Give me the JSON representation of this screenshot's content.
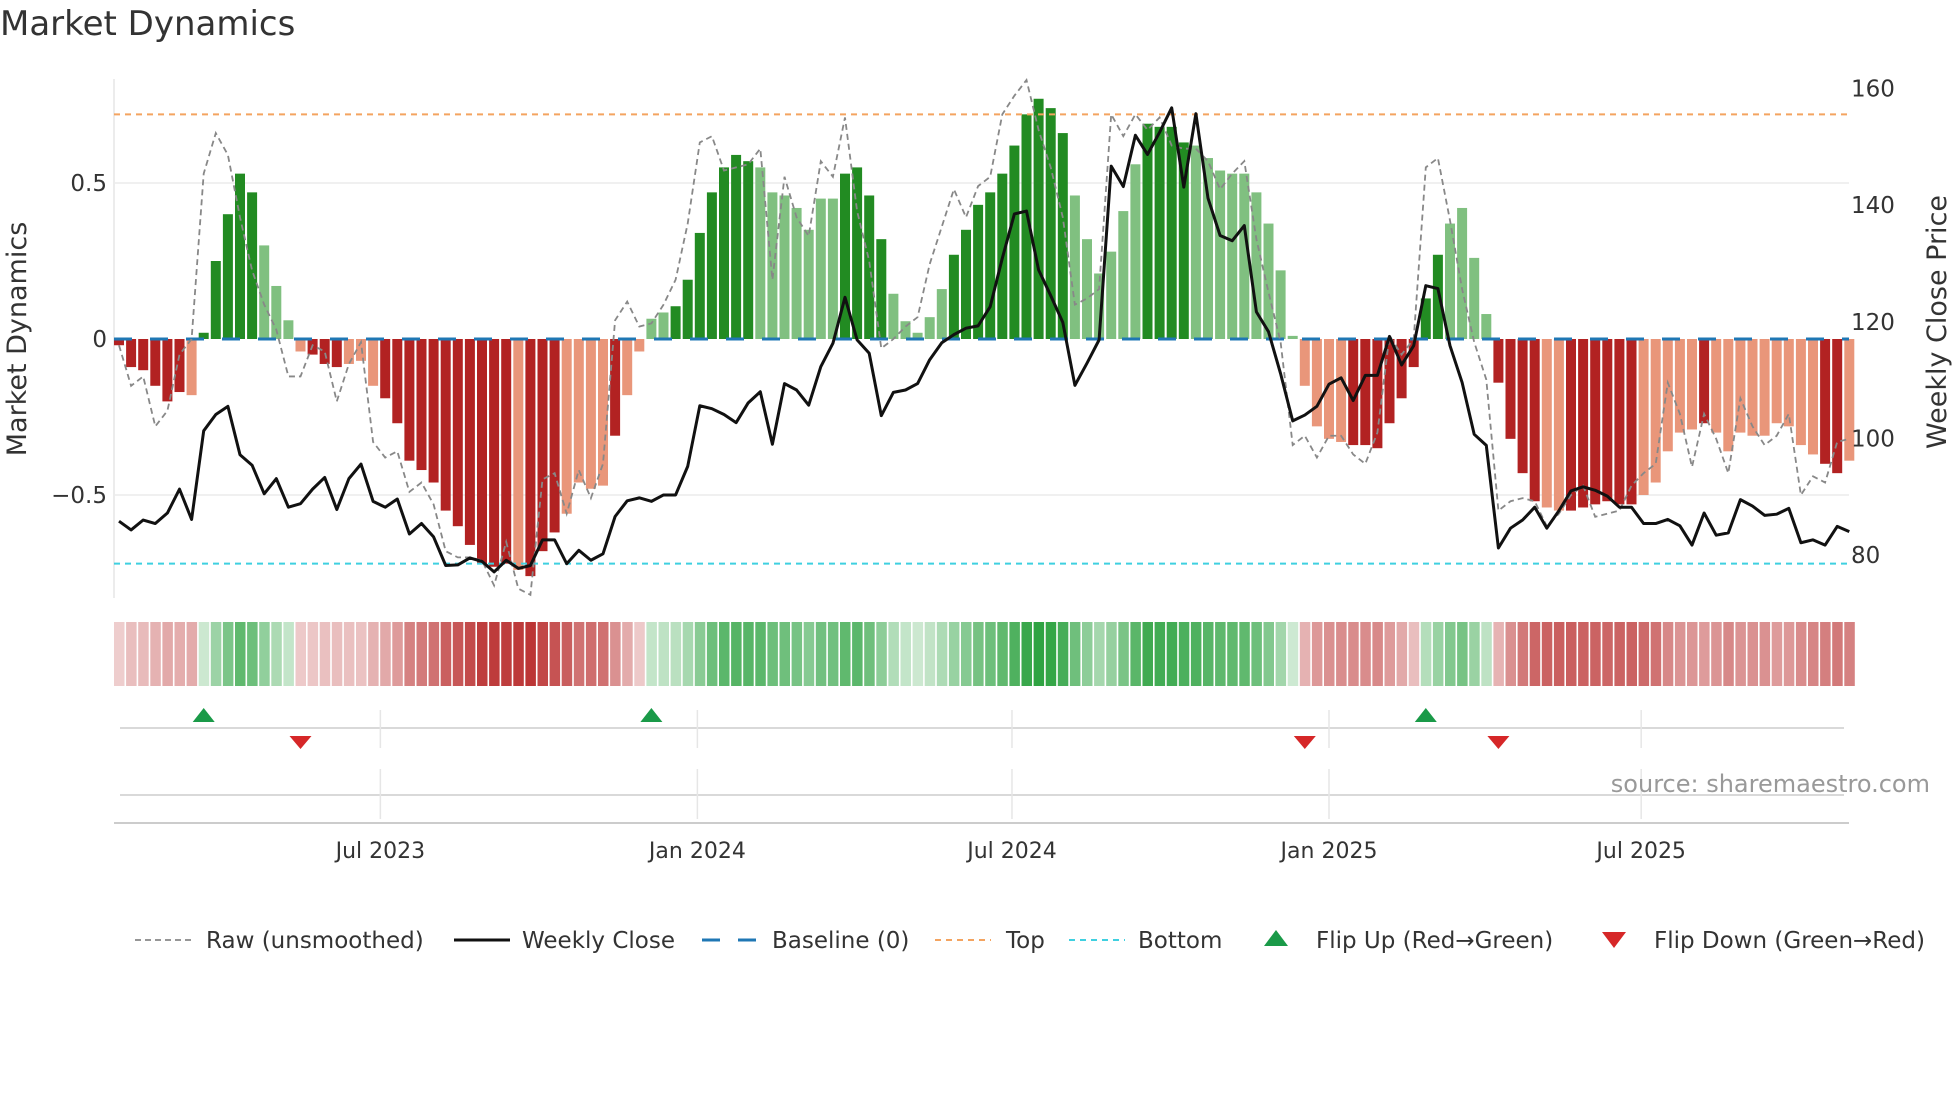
{
  "chart_data": {
    "type": "bar",
    "title": "Market Dynamics",
    "ylabel_left": "Market Dynamics",
    "ylabel_right": "Weekly Close Price",
    "left_ticks": [
      {
        "value": 0.5,
        "label": "0.5"
      },
      {
        "value": 0,
        "label": "0"
      },
      {
        "value": -0.5,
        "label": "−0.5"
      }
    ],
    "right_ticks": [
      {
        "value": 160,
        "label": "160"
      },
      {
        "value": 140,
        "label": "140"
      },
      {
        "value": 120,
        "label": "120"
      },
      {
        "value": 100,
        "label": "100"
      },
      {
        "value": 80,
        "label": "80"
      }
    ],
    "ylim_left": [
      -0.83,
      0.83
    ],
    "ylim_right": [
      80,
      160
    ],
    "top_level": 0.72,
    "bottom_level": -0.72,
    "baseline": 0,
    "x_ticks": [
      {
        "week": 22.6,
        "label": "Jul 2023"
      },
      {
        "week": 48.8,
        "label": "Jan 2024"
      },
      {
        "week": 74.8,
        "label": "Jul 2024"
      },
      {
        "week": 101,
        "label": "Jan 2025"
      },
      {
        "week": 126.8,
        "label": "Jul 2025"
      }
    ],
    "dynamics": [
      -0.02,
      -0.09,
      -0.1,
      -0.15,
      -0.2,
      -0.17,
      -0.18,
      0.02,
      0.25,
      0.4,
      0.53,
      0.47,
      0.3,
      0.17,
      0.06,
      -0.04,
      -0.05,
      -0.08,
      -0.09,
      -0.08,
      -0.07,
      -0.15,
      -0.19,
      -0.27,
      -0.39,
      -0.42,
      -0.46,
      -0.55,
      -0.6,
      -0.66,
      -0.72,
      -0.73,
      -0.72,
      -0.74,
      -0.76,
      -0.68,
      -0.62,
      -0.56,
      -0.46,
      -0.48,
      -0.47,
      -0.31,
      -0.18,
      -0.04,
      0.065,
      0.085,
      0.105,
      0.19,
      0.34,
      0.47,
      0.55,
      0.59,
      0.57,
      0.55,
      0.47,
      0.46,
      0.42,
      0.35,
      0.45,
      0.45,
      0.53,
      0.55,
      0.46,
      0.32,
      0.145,
      0.057,
      0.02,
      0.07,
      0.16,
      0.27,
      0.35,
      0.43,
      0.47,
      0.53,
      0.62,
      0.72,
      0.77,
      0.74,
      0.66,
      0.46,
      0.32,
      0.21,
      0.28,
      0.41,
      0.56,
      0.69,
      0.68,
      0.68,
      0.63,
      0.62,
      0.58,
      0.54,
      0.53,
      0.53,
      0.47,
      0.37,
      0.22,
      0.01,
      -0.15,
      -0.28,
      -0.32,
      -0.33,
      -0.34,
      -0.34,
      -0.35,
      -0.27,
      -0.19,
      -0.09,
      0.13,
      0.27,
      0.37,
      0.42,
      0.26,
      0.08,
      -0.14,
      -0.32,
      -0.43,
      -0.52,
      -0.54,
      -0.55,
      -0.55,
      -0.54,
      -0.53,
      -0.52,
      -0.53,
      -0.53,
      -0.5,
      -0.46,
      -0.36,
      -0.3,
      -0.29,
      -0.27,
      -0.3,
      -0.36,
      -0.3,
      -0.31,
      -0.31,
      -0.27,
      -0.28,
      -0.34,
      -0.37,
      -0.4,
      -0.43,
      -0.39
    ],
    "momentum_shade": "ddddddldddddlllldddllldddddddddddldddlllldlllldddddddlllllllddddlllllddddddddddllllllddddlllllllllllllddddddddllllddddllddddddllllldlllllllllddldldllddddddl",
    "raw": [
      -0.02,
      -0.15,
      -0.12,
      -0.28,
      -0.23,
      -0.05,
      0.0,
      0.53,
      0.66,
      0.59,
      0.39,
      0.22,
      0.11,
      0.03,
      -0.12,
      -0.12,
      -0.02,
      -0.04,
      -0.2,
      -0.08,
      -0.01,
      -0.33,
      -0.38,
      -0.36,
      -0.49,
      -0.46,
      -0.53,
      -0.68,
      -0.7,
      -0.7,
      -0.71,
      -0.79,
      -0.65,
      -0.8,
      -0.82,
      -0.45,
      -0.43,
      -0.56,
      -0.42,
      -0.51,
      -0.4,
      0.06,
      0.12,
      0.04,
      0.05,
      0.11,
      0.19,
      0.37,
      0.63,
      0.65,
      0.54,
      0.55,
      0.56,
      0.61,
      0.19,
      0.52,
      0.39,
      0.33,
      0.57,
      0.52,
      0.71,
      0.41,
      0.25,
      -0.03,
      0.0,
      0.04,
      0.07,
      0.24,
      0.36,
      0.48,
      0.39,
      0.49,
      0.52,
      0.72,
      0.78,
      0.83,
      0.67,
      0.55,
      0.39,
      0.11,
      0.13,
      0.16,
      0.72,
      0.65,
      0.72,
      0.67,
      0.71,
      0.62,
      0.61,
      0.61,
      0.57,
      0.48,
      0.53,
      0.57,
      0.32,
      0.15,
      -0.01,
      -0.34,
      -0.31,
      -0.38,
      -0.31,
      -0.31,
      -0.37,
      -0.4,
      -0.3,
      0.01,
      -0.05,
      0.0,
      0.55,
      0.58,
      0.38,
      0.16,
      -0.01,
      -0.13,
      -0.55,
      -0.52,
      -0.51,
      -0.52,
      -0.6,
      -0.56,
      -0.5,
      -0.47,
      -0.57,
      -0.56,
      -0.55,
      -0.47,
      -0.43,
      -0.4,
      -0.14,
      -0.24,
      -0.41,
      -0.24,
      -0.32,
      -0.43,
      -0.19,
      -0.28,
      -0.34,
      -0.31,
      -0.24,
      -0.5,
      -0.44,
      -0.46,
      -0.33,
      -0.32
    ],
    "close": [
      85.8,
      84.3,
      86.0,
      85.4,
      87.2,
      91.3,
      86.1,
      101.3,
      104.1,
      105.5,
      97.2,
      95.4,
      90.5,
      93.1,
      88.2,
      88.8,
      91.3,
      93.3,
      87.8,
      93.1,
      95.6,
      89.2,
      88.2,
      89.6,
      83.6,
      85.4,
      83.1,
      78.2,
      78.3,
      79.5,
      78.9,
      77.1,
      79.1,
      77.7,
      78.2,
      82.6,
      82.6,
      78.5,
      80.8,
      79.1,
      80.2,
      86.6,
      89.3,
      89.8,
      89.2,
      90.3,
      90.3,
      95.2,
      105.6,
      105.1,
      104.1,
      102.7,
      106.1,
      108.0,
      99.0,
      109.4,
      108.3,
      105.7,
      112.3,
      116.3,
      124.2,
      116.9,
      114.6,
      103.9,
      107.9,
      108.3,
      109.4,
      113.5,
      116.4,
      117.8,
      118.9,
      119.3,
      122.6,
      130.9,
      138.5,
      139.0,
      128.9,
      124.5,
      119.9,
      109.1,
      112.9,
      116.9,
      146.7,
      143.2,
      152.0,
      148.7,
      152.5,
      156.7,
      143.1,
      155.7,
      141.2,
      134.8,
      133.9,
      136.5,
      121.7,
      118.3,
      111.1,
      103.0,
      104.0,
      105.5,
      109.3,
      110.4,
      106.5,
      110.8,
      110.8,
      117.5,
      112.6,
      115.9,
      126.2,
      125.7,
      115.9,
      109.6,
      100.7,
      98.8,
      81.2,
      84.6,
      86.0,
      88.2,
      84.6,
      87.6,
      91.0,
      91.7,
      91.1,
      90.1,
      88.2,
      88.2,
      85.4,
      85.4,
      86.1,
      85.0,
      81.7,
      87.2,
      83.4,
      83.8,
      89.5,
      88.4,
      86.8,
      87.0,
      88.0,
      82.1,
      82.6,
      81.7,
      84.9,
      84.0
    ],
    "flip_up_weeks": [
      8,
      45,
      109
    ],
    "flip_down_weeks": [
      16,
      99,
      115
    ],
    "colors": {
      "dark_green": "#228b22",
      "light_green": "#80c080",
      "dark_red": "#b22222",
      "light_red": "#e9967a",
      "top": "#f4a460",
      "bottom": "#3fd0e0",
      "baseline": "#1f77b4",
      "raw": "#888888",
      "close": "#111111",
      "flip_up": "#1a9a48",
      "flip_down": "#d62728"
    },
    "legend": [
      {
        "key": "raw",
        "label": "Raw (unsmoothed)"
      },
      {
        "key": "close",
        "label": "Weekly Close"
      },
      {
        "key": "baseline",
        "label": "Baseline (0)"
      },
      {
        "key": "top",
        "label": "Top"
      },
      {
        "key": "bottom",
        "label": "Bottom"
      },
      {
        "key": "flip_up",
        "label": "Flip Up (Red→Green)"
      },
      {
        "key": "flip_down",
        "label": "Flip Down (Green→Red)"
      }
    ],
    "legend_position": "bottom",
    "source": "source: sharemaestro.com"
  }
}
